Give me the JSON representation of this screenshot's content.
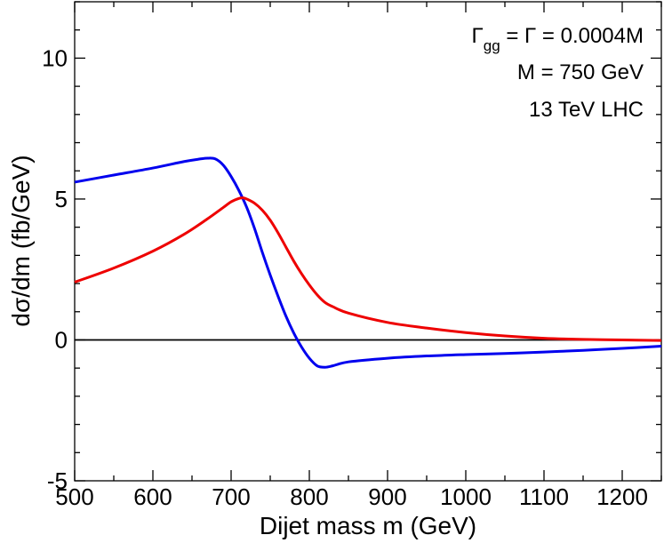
{
  "chart_data": {
    "type": "line",
    "title": "",
    "xlabel": "Dijet mass m  (GeV)",
    "ylabel": "dσ/dm   (fb/GeV)",
    "xlim": [
      500,
      1250
    ],
    "ylim": [
      -5,
      12
    ],
    "x_ticks": [
      500,
      600,
      700,
      800,
      900,
      1000,
      1100,
      1200
    ],
    "y_ticks": [
      -5,
      0,
      5,
      10
    ],
    "x_tick_labels": [
      "500",
      "600",
      "700",
      "800",
      "900",
      "1000",
      "1100",
      "1200"
    ],
    "y_tick_labels": [
      "-5",
      "0",
      "5",
      "10"
    ],
    "reference_line": {
      "y": 0,
      "color": "#000000"
    },
    "annotations": [
      {
        "symbol": "Γ",
        "sub": "gg",
        "rest": " = Γ = 0.0004M"
      },
      {
        "text": "M = 750 GeV"
      },
      {
        "text": "13 TeV LHC"
      }
    ],
    "series": [
      {
        "name": "blue",
        "color": "#0000ee",
        "x": [
          500,
          550,
          600,
          640,
          660,
          670,
          680,
          690,
          700,
          710,
          720,
          730,
          740,
          750,
          760,
          770,
          780,
          790,
          800,
          810,
          820,
          830,
          850,
          900,
          950,
          1000,
          1050,
          1100,
          1150,
          1200,
          1250
        ],
        "y": [
          5.6,
          5.85,
          6.1,
          6.33,
          6.42,
          6.45,
          6.42,
          6.2,
          5.8,
          5.3,
          4.7,
          3.95,
          3.1,
          2.3,
          1.55,
          0.85,
          0.25,
          -0.25,
          -0.65,
          -0.92,
          -0.97,
          -0.92,
          -0.78,
          -0.65,
          -0.57,
          -0.52,
          -0.48,
          -0.43,
          -0.37,
          -0.3,
          -0.22
        ]
      },
      {
        "name": "red",
        "color": "#ee0000",
        "x": [
          500,
          550,
          600,
          640,
          670,
          690,
          700,
          710,
          715,
          720,
          730,
          740,
          750,
          760,
          770,
          780,
          790,
          800,
          810,
          820,
          830,
          850,
          900,
          950,
          1000,
          1050,
          1100,
          1150,
          1200,
          1250
        ],
        "y": [
          2.05,
          2.55,
          3.15,
          3.75,
          4.3,
          4.7,
          4.9,
          5.02,
          5.04,
          5.0,
          4.85,
          4.6,
          4.25,
          3.8,
          3.3,
          2.8,
          2.35,
          1.95,
          1.6,
          1.33,
          1.18,
          0.95,
          0.62,
          0.42,
          0.26,
          0.14,
          0.06,
          0.02,
          0.0,
          -0.02
        ]
      }
    ]
  }
}
